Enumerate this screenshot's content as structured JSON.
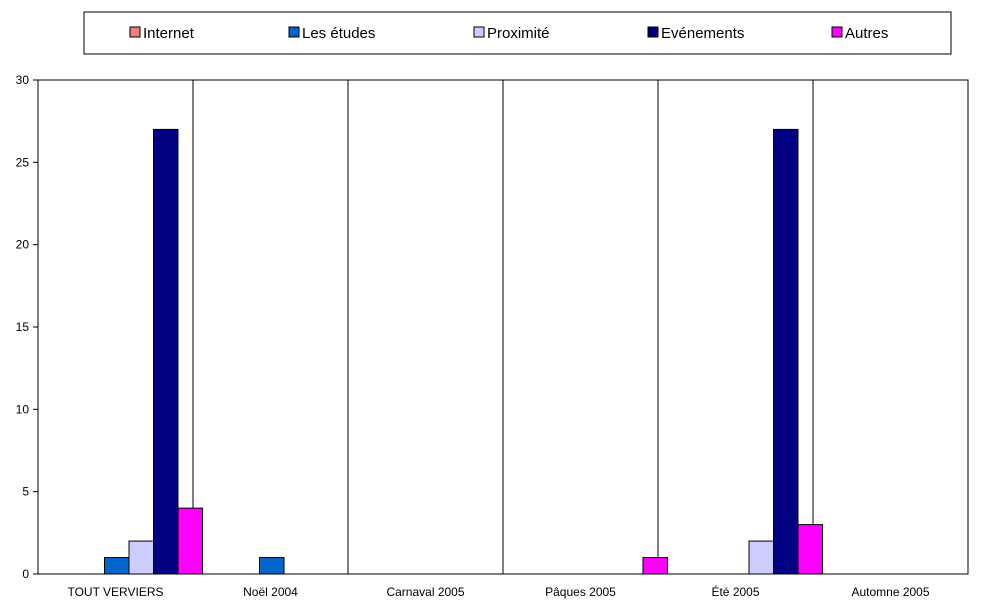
{
  "chart_data": {
    "type": "bar",
    "categories": [
      "TOUT VERVIERS",
      "Noël 2004",
      "Carnaval 2005",
      "Pâques 2005",
      "Été 2005",
      "Automne 2005"
    ],
    "series": [
      {
        "name": "Internet",
        "color": "#f08080",
        "values": [
          0,
          0,
          0,
          0,
          0,
          0
        ]
      },
      {
        "name": "Les études",
        "color": "#0066cc",
        "values": [
          1,
          1,
          0,
          0,
          0,
          0
        ]
      },
      {
        "name": "Proximité",
        "color": "#ccccff",
        "values": [
          2,
          0,
          0,
          0,
          2,
          0
        ]
      },
      {
        "name": "Evénements",
        "color": "#000080",
        "values": [
          27,
          0,
          0,
          0,
          27,
          0
        ]
      },
      {
        "name": "Autres",
        "color": "#ff00ff",
        "values": [
          4,
          0,
          0,
          1,
          3,
          0
        ]
      }
    ],
    "ylim": [
      0,
      30
    ],
    "yticks": [
      0,
      5,
      10,
      15,
      20,
      25,
      30
    ],
    "grid": "vertical category separators",
    "legend_position": "top"
  }
}
